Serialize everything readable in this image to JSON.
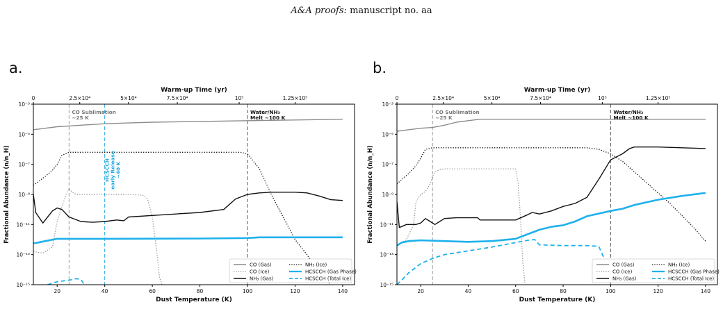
{
  "header": {
    "journal": "A&A proofs:",
    "manuscript": "manuscript no. aa"
  },
  "chart_data": [
    {
      "panel_label": "a.",
      "type": "line",
      "xlabel": "Dust Temperature (K)",
      "ylabel": "Fractional Abundance (n/n_H)",
      "top_axis_label": "Warm-up Time (yr)",
      "top_ticks": [
        {
          "label": "0",
          "at_temperature": 10
        },
        {
          "label": "2.5×10⁴",
          "at_temperature": 29.5
        },
        {
          "label": "5×10⁴",
          "at_temperature": 50
        },
        {
          "label": "7.5×10⁴",
          "at_temperature": 70.5
        },
        {
          "label": "10⁵",
          "at_temperature": 96.5
        },
        {
          "label": "1.25×10⁵",
          "at_temperature": 120
        }
      ],
      "xlim": [
        10,
        145
      ],
      "ylim_log10": [
        -15,
        -3
      ],
      "x_ticks": [
        20,
        40,
        60,
        80,
        100,
        120,
        140
      ],
      "y_ticks_log10": [
        -15,
        -13,
        -11,
        -9,
        -7,
        -5,
        -3
      ],
      "y_tick_labels": [
        "10⁻¹⁵",
        "10⁻¹³",
        "10⁻¹¹",
        "10⁻⁹",
        "10⁻⁷",
        "10⁻⁵",
        "10⁻³"
      ],
      "vlines": [
        {
          "x": 25,
          "color": "#999999",
          "lines": [
            "CO Sublimation",
            "~25 K"
          ],
          "label_color": "#777777"
        },
        {
          "x": 40,
          "color": "#1fa8e0",
          "lines": [
            "HCSCCH",
            "early Release",
            "~40 K"
          ],
          "label_color": "#1fa8e0",
          "rotated": true
        },
        {
          "x": 100,
          "color": "#555555",
          "lines": [
            "Water/NH₃",
            "Melt ~100 K"
          ],
          "label_color": "#111111"
        }
      ],
      "legend_position": "lower right",
      "series": [
        {
          "name": "CO (Gas)",
          "color": "#8c8c8c",
          "style": "solid",
          "width": 1.4,
          "x": [
            10,
            15,
            20,
            25,
            30,
            40,
            50,
            60,
            80,
            100,
            120,
            140
          ],
          "log10_y": [
            -4.7,
            -4.6,
            -4.5,
            -4.45,
            -4.4,
            -4.3,
            -4.25,
            -4.2,
            -4.15,
            -4.1,
            -4.05,
            -4.0
          ]
        },
        {
          "name": "CO (Ice)",
          "color": "#8c8c8c",
          "style": "dotted",
          "width": 1.2,
          "x": [
            10,
            14,
            18,
            20,
            22,
            24,
            25,
            26,
            28,
            30,
            40,
            50,
            56,
            58,
            60,
            62,
            63,
            64
          ],
          "log10_y": [
            -12.8,
            -12.9,
            -12.5,
            -10.8,
            -9.8,
            -8.9,
            -8.6,
            -8.8,
            -9.0,
            -9.0,
            -9.0,
            -9.0,
            -9.05,
            -9.3,
            -10.5,
            -13.0,
            -14.5,
            -15.0
          ]
        },
        {
          "name": "NH₃ (Gas)",
          "color": "#111111",
          "style": "solid",
          "width": 1.4,
          "x": [
            10,
            11,
            14,
            18,
            20,
            22,
            25,
            30,
            35,
            40,
            45,
            48,
            50,
            60,
            80,
            90,
            95,
            100,
            105,
            110,
            120,
            125,
            130,
            135,
            140
          ],
          "log10_y": [
            -9.0,
            -10.2,
            -10.9,
            -10.1,
            -9.9,
            -10.0,
            -10.5,
            -10.8,
            -10.85,
            -10.8,
            -10.7,
            -10.75,
            -10.5,
            -10.4,
            -10.2,
            -10.0,
            -9.3,
            -9.0,
            -8.9,
            -8.85,
            -8.85,
            -8.9,
            -9.1,
            -9.35,
            -9.4
          ]
        },
        {
          "name": "NH₃ (Ice)",
          "color": "#111111",
          "style": "dotted",
          "width": 1.3,
          "x": [
            10,
            15,
            18,
            20,
            22,
            25,
            30,
            60,
            80,
            90,
            97,
            100,
            105,
            110,
            115,
            120,
            125,
            130,
            135
          ],
          "log10_y": [
            -8.4,
            -7.8,
            -7.4,
            -7.0,
            -6.4,
            -6.2,
            -6.2,
            -6.2,
            -6.2,
            -6.2,
            -6.2,
            -6.3,
            -7.3,
            -9.0,
            -10.5,
            -12.0,
            -13.0,
            -14.2,
            -15.0
          ]
        },
        {
          "name": "HCSCCH (Gas Phase)",
          "color": "#1fb1ec",
          "style": "solid",
          "width": 2.6,
          "x": [
            10,
            12,
            15,
            20,
            40,
            80,
            100,
            105,
            120,
            140
          ],
          "log10_y": [
            -12.25,
            -12.2,
            -12.1,
            -11.95,
            -11.95,
            -11.93,
            -11.9,
            -11.85,
            -11.85,
            -11.85
          ]
        },
        {
          "name": "HCSCCH (Total Ice)",
          "color": "#1fb1ec",
          "style": "dashed",
          "width": 1.8,
          "x": [
            16,
            20,
            25,
            28,
            30,
            31,
            32
          ],
          "log10_y": [
            -15.0,
            -14.8,
            -14.7,
            -14.6,
            -14.65,
            -14.9,
            -15.0
          ]
        }
      ]
    },
    {
      "panel_label": "b.",
      "type": "line",
      "xlabel": "Dust Temperature (K)",
      "ylabel": "Fractional Abundance (n/n_H)",
      "top_axis_label": "Warm-up Time (yr)",
      "top_ticks": [
        {
          "label": "0",
          "at_temperature": 10
        },
        {
          "label": "2.5×10⁴",
          "at_temperature": 29.5
        },
        {
          "label": "5×10⁴",
          "at_temperature": 50
        },
        {
          "label": "7.5×10⁴",
          "at_temperature": 70.5
        },
        {
          "label": "10⁵",
          "at_temperature": 96.5
        },
        {
          "label": "1.25×10⁵",
          "at_temperature": 120
        }
      ],
      "xlim": [
        10,
        145
      ],
      "ylim_log10": [
        -15,
        -3
      ],
      "x_ticks": [
        20,
        40,
        60,
        80,
        100,
        120,
        140
      ],
      "y_ticks_log10": [
        -15,
        -13,
        -11,
        -9,
        -7,
        -5,
        -3
      ],
      "y_tick_labels": [
        "10⁻¹⁵",
        "10⁻¹³",
        "10⁻¹¹",
        "10⁻⁹",
        "10⁻⁷",
        "10⁻⁵",
        "10⁻³"
      ],
      "vlines": [
        {
          "x": 25,
          "color": "#999999",
          "lines": [
            "CO Sublimation",
            "~25 K"
          ],
          "label_color": "#777777"
        },
        {
          "x": 100,
          "color": "#555555",
          "lines": [
            "Water/NH₃",
            "Melt ~100 K"
          ],
          "label_color": "#111111"
        }
      ],
      "legend_position": "lower right",
      "series": [
        {
          "name": "CO (Gas)",
          "color": "#8c8c8c",
          "style": "solid",
          "width": 1.4,
          "x": [
            10,
            15,
            20,
            25,
            30,
            35,
            40,
            45,
            50,
            60,
            80,
            100,
            120,
            140
          ],
          "log10_y": [
            -4.8,
            -4.7,
            -4.6,
            -4.55,
            -4.4,
            -4.2,
            -4.1,
            -4.0,
            -4.0,
            -4.0,
            -4.0,
            -4.0,
            -4.0,
            -4.0
          ]
        },
        {
          "name": "CO (Ice)",
          "color": "#8c8c8c",
          "style": "dotted",
          "width": 1.2,
          "x": [
            10,
            14,
            17,
            18,
            20,
            22,
            24,
            25,
            26,
            28,
            30,
            60,
            61,
            62,
            63,
            64
          ],
          "log10_y": [
            -12.4,
            -12.0,
            -11.0,
            -9.5,
            -9.0,
            -8.8,
            -8.3,
            -7.8,
            -7.5,
            -7.35,
            -7.3,
            -7.3,
            -8.2,
            -10.5,
            -13.5,
            -15.0
          ]
        },
        {
          "name": "NH₃ (Gas)",
          "color": "#111111",
          "style": "solid",
          "width": 1.4,
          "x": [
            10,
            11,
            14,
            18,
            20,
            22,
            24,
            26,
            28,
            30,
            35,
            40,
            44,
            45,
            50,
            55,
            60,
            65,
            67,
            70,
            75,
            80,
            85,
            90,
            95,
            100,
            105,
            108,
            110,
            120,
            130,
            140
          ],
          "log10_y": [
            -9.5,
            -11.2,
            -11.0,
            -11.0,
            -10.9,
            -10.6,
            -10.8,
            -11.0,
            -10.8,
            -10.6,
            -10.55,
            -10.55,
            -10.55,
            -10.7,
            -10.7,
            -10.7,
            -10.7,
            -10.35,
            -10.2,
            -10.3,
            -10.1,
            -9.8,
            -9.6,
            -9.2,
            -8.0,
            -6.7,
            -6.3,
            -5.95,
            -5.85,
            -5.85,
            -5.9,
            -5.95
          ]
        },
        {
          "name": "NH₃ (Ice)",
          "color": "#111111",
          "style": "dotted",
          "width": 1.3,
          "x": [
            10,
            15,
            18,
            20,
            22,
            25,
            30,
            60,
            80,
            90,
            95,
            100,
            105,
            110,
            115,
            120,
            125,
            130,
            135,
            140
          ],
          "log10_y": [
            -8.3,
            -7.6,
            -7.1,
            -6.6,
            -6.0,
            -5.9,
            -5.9,
            -5.9,
            -5.9,
            -5.9,
            -6.0,
            -6.3,
            -6.8,
            -7.5,
            -8.2,
            -8.9,
            -9.6,
            -10.4,
            -11.2,
            -12.1
          ]
        },
        {
          "name": "HCSCCH (Gas Phase)",
          "color": "#1fb1ec",
          "style": "solid",
          "width": 2.6,
          "x": [
            10,
            12,
            15,
            20,
            30,
            40,
            50,
            60,
            65,
            70,
            75,
            80,
            85,
            90,
            100,
            105,
            110,
            120,
            130,
            140
          ],
          "log10_y": [
            -12.4,
            -12.2,
            -12.1,
            -12.05,
            -12.1,
            -12.15,
            -12.1,
            -11.95,
            -11.65,
            -11.35,
            -11.15,
            -11.05,
            -10.8,
            -10.45,
            -10.1,
            -9.95,
            -9.7,
            -9.35,
            -9.1,
            -8.9
          ]
        },
        {
          "name": "HCSCCH (Total Ice)",
          "color": "#1fb1ec",
          "style": "dashed",
          "width": 1.8,
          "x": [
            10,
            12,
            15,
            20,
            25,
            30,
            40,
            50,
            60,
            65,
            68,
            70,
            80,
            90,
            95,
            98,
            100,
            101
          ],
          "log10_y": [
            -15.0,
            -14.7,
            -14.2,
            -13.6,
            -13.25,
            -13.0,
            -12.75,
            -12.5,
            -12.2,
            -12.05,
            -12.0,
            -12.35,
            -12.4,
            -12.4,
            -12.45,
            -13.5,
            -14.5,
            -15.0
          ]
        }
      ]
    }
  ]
}
